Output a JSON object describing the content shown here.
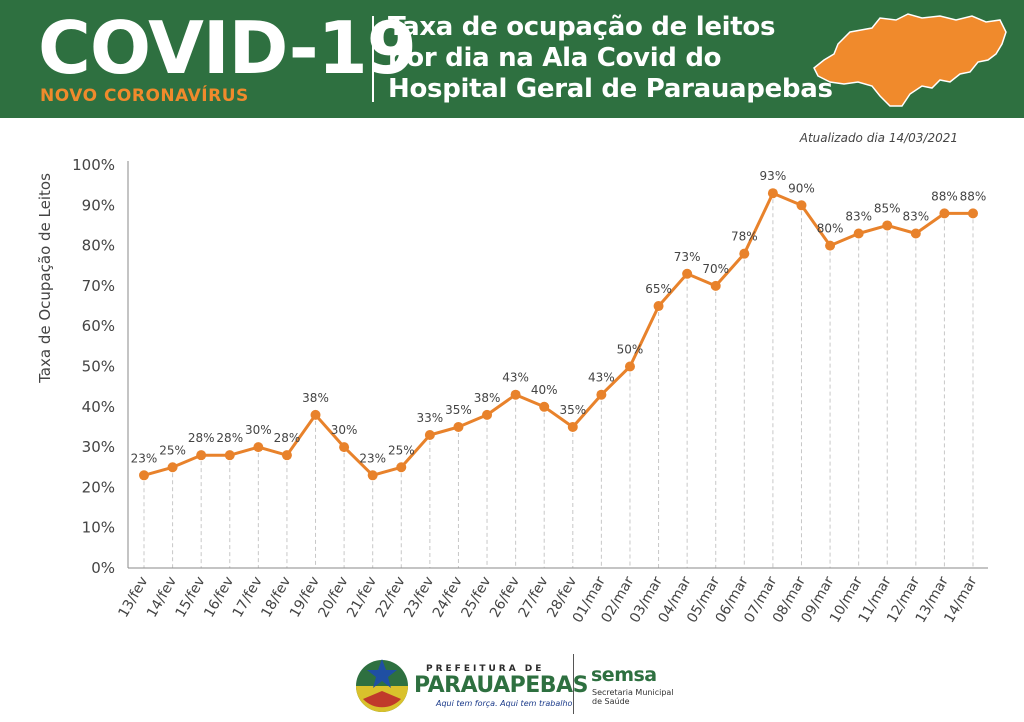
{
  "header": {
    "title": "COVID-19",
    "subtitle": "NOVO CORONAVÍRUS",
    "headline_lines": [
      "Taxa de ocupação de leitos",
      "por dia na Ala Covid do",
      "Hospital Geral de Parauapebas"
    ],
    "updated": "Atualizado dia 14/03/2021"
  },
  "colors": {
    "banner": "#2e7040",
    "accent": "#f08a2c",
    "line": "#e8822b"
  },
  "chart_data": {
    "type": "line",
    "ylabel": "Taxa de Ocupação de Leitos",
    "xlabel": "",
    "ylim": [
      0,
      100
    ],
    "yticks": [
      "0%",
      "10%",
      "20%",
      "30%",
      "40%",
      "50%",
      "60%",
      "70%",
      "80%",
      "90%",
      "100%"
    ],
    "grid": "vertical dashed",
    "categories": [
      "13/fev",
      "14/fev",
      "15/fev",
      "16/fev",
      "17/fev",
      "18/fev",
      "19/fev",
      "20/fev",
      "21/fev",
      "22/fev",
      "23/fev",
      "24/fev",
      "25/fev",
      "26/fev",
      "27/fev",
      "28/fev",
      "01/mar",
      "02/mar",
      "03/mar",
      "04/mar",
      "05/mar",
      "06/mar",
      "07/mar",
      "08/mar",
      "09/mar",
      "10/mar",
      "11/mar",
      "12/mar",
      "13/mar",
      "14/mar"
    ],
    "values": [
      23,
      25,
      28,
      28,
      30,
      28,
      38,
      30,
      23,
      25,
      33,
      35,
      38,
      43,
      40,
      35,
      43,
      50,
      65,
      73,
      70,
      78,
      93,
      90,
      80,
      83,
      85,
      83,
      88,
      88
    ],
    "data_labels": [
      "23%",
      "25%",
      "28%",
      "28%",
      "30%",
      "28%",
      "38%",
      "30%",
      "23%",
      "25%",
      "33%",
      "35%",
      "38%",
      "43%",
      "40%",
      "35%",
      "43%",
      "50%",
      "65%",
      "73%",
      "70%",
      "78%",
      "93%",
      "90%",
      "80%",
      "83%",
      "85%",
      "83%",
      "88%",
      "88%"
    ]
  },
  "footer": {
    "prefeitura_small": "PREFEITURA DE",
    "prefeitura_name": "PARAUAPEBAS",
    "prefeitura_slogan": "Aqui tem força. Aqui tem trabalho",
    "semsa": "semsa",
    "semsa_sub_1": "Secretaria Municipal",
    "semsa_sub_2": "de Saúde"
  }
}
